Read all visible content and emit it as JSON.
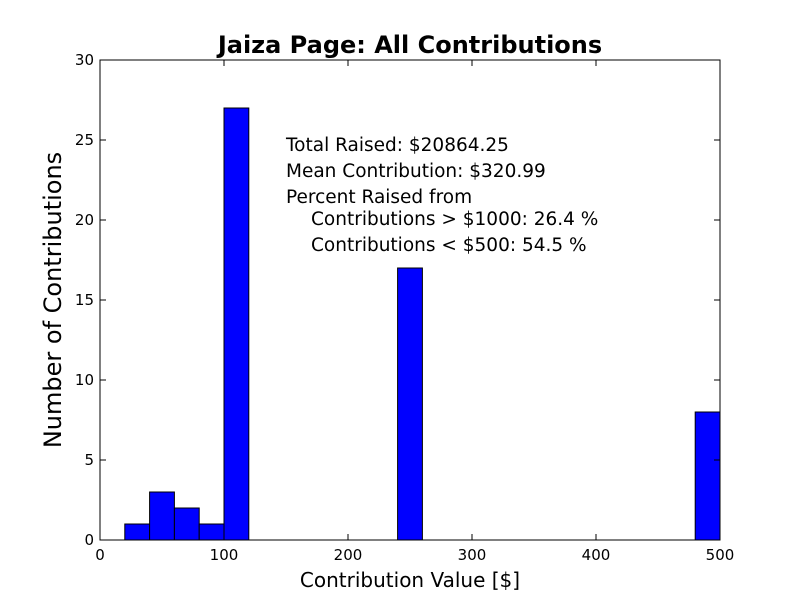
{
  "chart_data": {
    "type": "bar",
    "title": "Jaiza Page: All Contributions",
    "xlabel": "Contribution Value [$]",
    "ylabel": "Number of Contributions",
    "xlim": [
      0,
      500
    ],
    "ylim": [
      0,
      30
    ],
    "bin_width": 20,
    "x_ticks": [
      "0",
      "100",
      "200",
      "300",
      "400",
      "500"
    ],
    "y_ticks": [
      "0",
      "5",
      "10",
      "15",
      "20",
      "25",
      "30"
    ],
    "bins": [
      {
        "start": 20,
        "count": 1
      },
      {
        "start": 40,
        "count": 3
      },
      {
        "start": 60,
        "count": 2
      },
      {
        "start": 80,
        "count": 1
      },
      {
        "start": 100,
        "count": 27
      },
      {
        "start": 240,
        "count": 17
      },
      {
        "start": 480,
        "count": 8
      }
    ],
    "bar_color": "#0000ff",
    "grid": false,
    "annotation": {
      "total": "Total Raised: $20864.25",
      "mean": "Mean Contribution: $320.99",
      "percent_header": "Percent Raised from",
      "over_1000": "Contributions > $1000: 26.4 %",
      "under_500": "Contributions < $500: 54.5 %"
    }
  }
}
